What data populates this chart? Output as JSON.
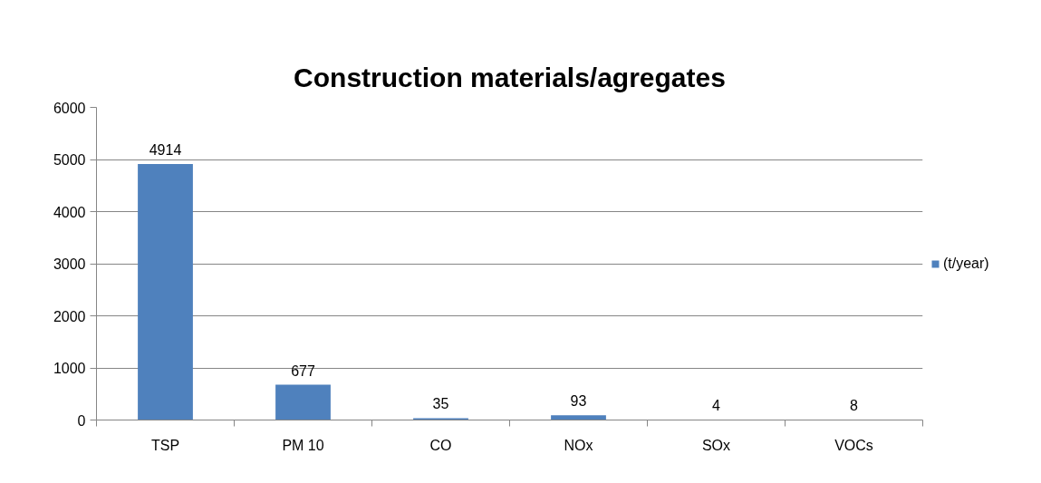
{
  "chart_data": {
    "type": "bar",
    "title": "Construction materials/agregates",
    "categories": [
      "TSP",
      "PM 10",
      "CO",
      "NOx",
      "SOx",
      "VOCs"
    ],
    "series": [
      {
        "name": "(t/year)",
        "color": "#4f81bd",
        "values": [
          4914,
          677,
          35,
          93,
          4,
          8
        ]
      }
    ],
    "ylim": [
      0,
      6000
    ],
    "yticks": [
      0,
      1000,
      2000,
      3000,
      4000,
      5000,
      6000
    ],
    "grid": "y",
    "legend": "right",
    "data_labels": true
  }
}
